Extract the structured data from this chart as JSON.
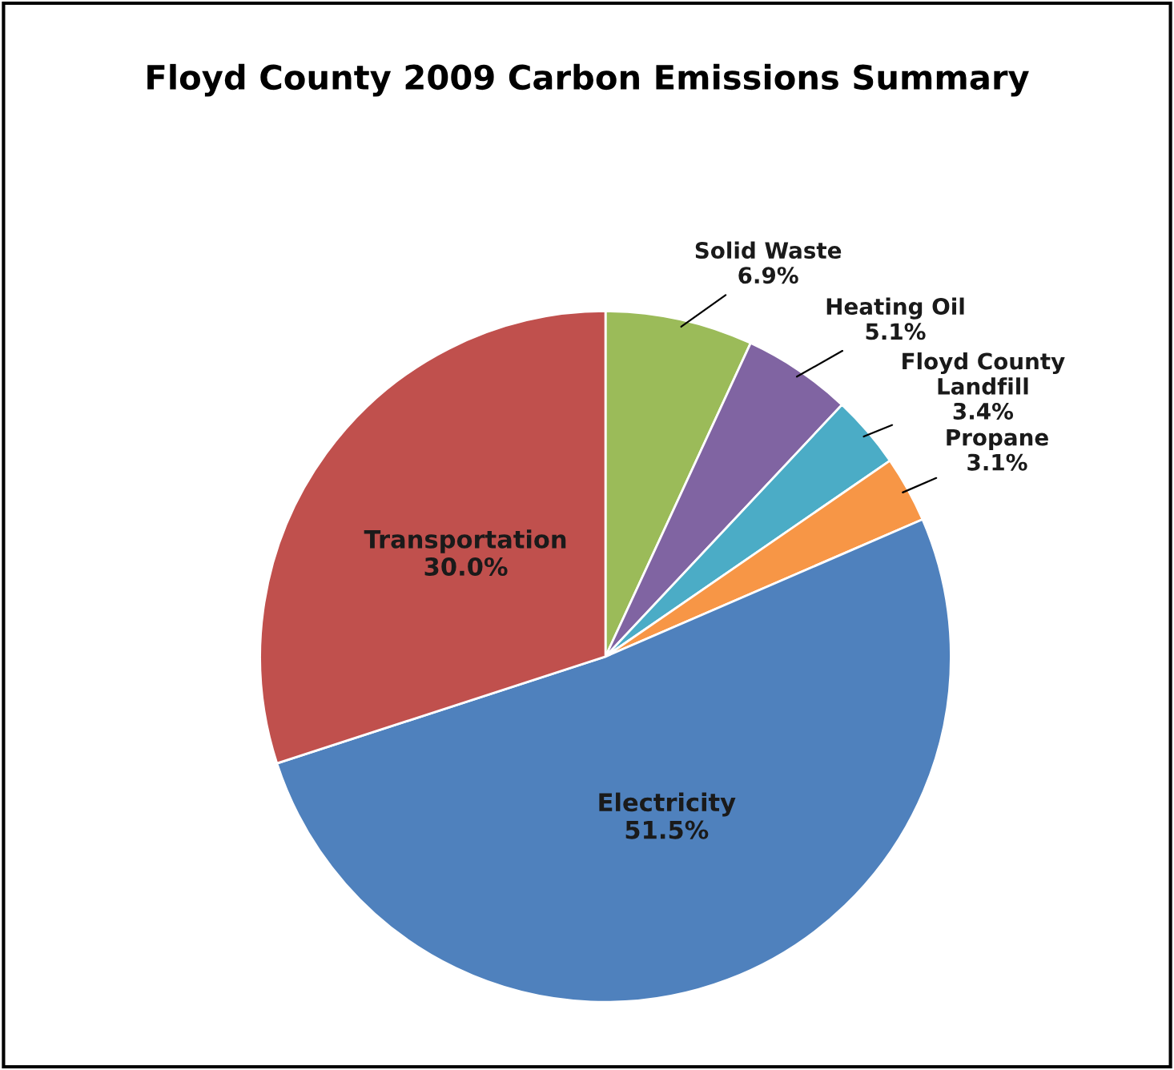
{
  "chart_data": {
    "type": "pie",
    "title": "Floyd County 2009 Carbon Emissions Summary",
    "categories": [
      "Solid Waste",
      "Heating Oil",
      "Floyd County\nLandfill",
      "Propane",
      "Electricity",
      "Transportation"
    ],
    "values": [
      6.9,
      5.1,
      3.4,
      3.1,
      51.5,
      30.0
    ],
    "colors": [
      "#9bbb59",
      "#8064a2",
      "#4bacc6",
      "#f79646",
      "#4f81bd",
      "#c0504d"
    ],
    "value_labels": [
      "6.9%",
      "5.1%",
      "3.4%",
      "3.1%",
      "51.5%",
      "30.0%"
    ],
    "legend": false
  }
}
